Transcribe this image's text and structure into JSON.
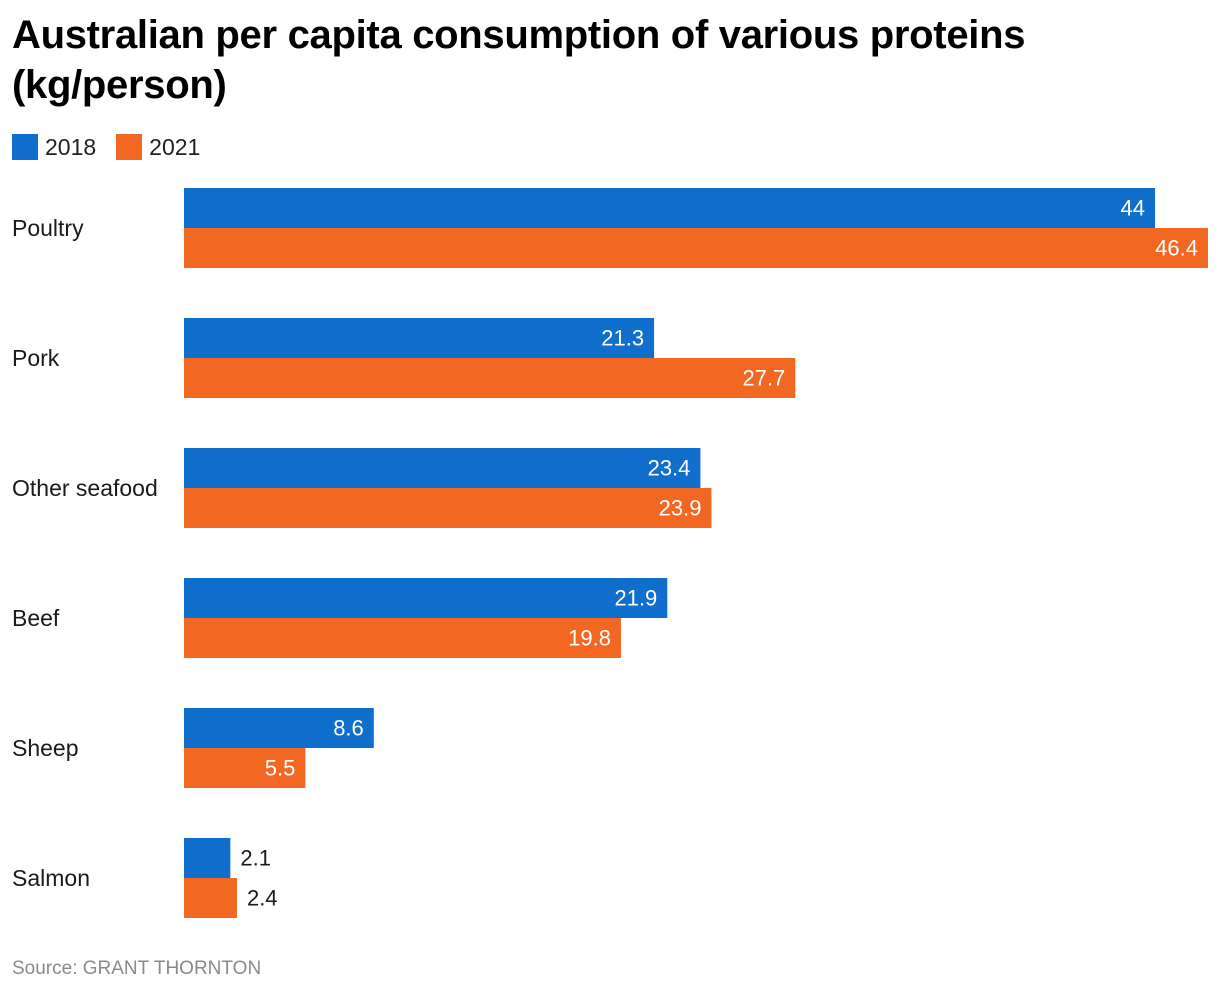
{
  "chart_data": {
    "type": "bar",
    "orientation": "horizontal",
    "title": "Australian per capita consumption of various proteins (kg/person)",
    "categories": [
      "Poultry",
      "Pork",
      "Other seafood",
      "Beef",
      "Sheep",
      "Salmon"
    ],
    "series": [
      {
        "name": "2018",
        "color": "#106ECC",
        "values": [
          44,
          21.3,
          23.4,
          21.9,
          8.6,
          2.1
        ]
      },
      {
        "name": "2021",
        "color": "#F26722",
        "values": [
          46.4,
          27.7,
          23.9,
          19.8,
          5.5,
          2.4
        ]
      }
    ],
    "xlim": [
      0,
      46.4
    ],
    "grid": false,
    "legend_position": "top-left",
    "data_labels": true,
    "source": "Source: GRANT THORNTON"
  }
}
